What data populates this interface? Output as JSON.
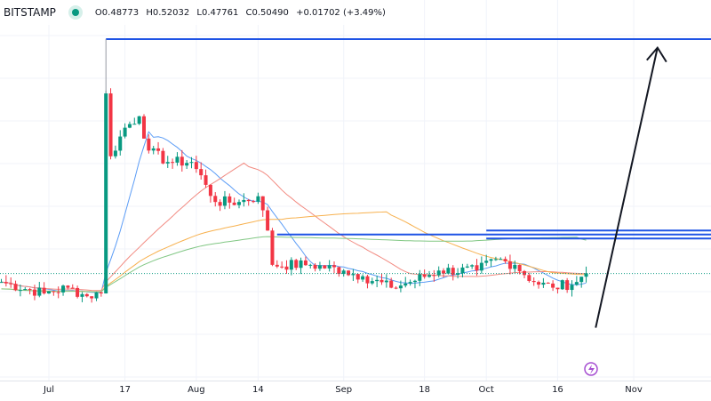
{
  "header": {
    "exchange": "BITSTAMP",
    "open": "O0.48773",
    "high": "H0.52032",
    "low": "L0.47761",
    "close": "C0.50490",
    "change": "+0.01702 (+3.49%)",
    "status_color": "#089981"
  },
  "axis": {
    "ticks": [
      {
        "label": "Jul",
        "day": 0
      },
      {
        "label": "17",
        "day": 16
      },
      {
        "label": "Aug",
        "day": 31
      },
      {
        "label": "14",
        "day": 44
      },
      {
        "label": "Sep",
        "day": 62
      },
      {
        "label": "18",
        "day": 79
      },
      {
        "label": "Oct",
        "day": 92
      },
      {
        "label": "16",
        "day": 107
      },
      {
        "label": "Nov",
        "day": 123
      }
    ]
  },
  "chart_data": {
    "type": "candlestick",
    "x_unit": "days since Jul 1",
    "close_keypoints": [
      [
        -10,
        0.49
      ],
      [
        -1,
        0.47
      ],
      [
        4,
        0.48
      ],
      [
        8,
        0.465
      ],
      [
        11,
        0.47
      ],
      [
        12,
        0.82
      ],
      [
        13,
        0.71
      ],
      [
        16,
        0.76
      ],
      [
        19,
        0.78
      ],
      [
        21,
        0.72
      ],
      [
        25,
        0.7
      ],
      [
        30,
        0.7
      ],
      [
        33,
        0.66
      ],
      [
        35,
        0.63
      ],
      [
        40,
        0.63
      ],
      [
        44,
        0.64
      ],
      [
        46,
        0.58
      ],
      [
        47,
        0.52
      ],
      [
        55,
        0.52
      ],
      [
        62,
        0.51
      ],
      [
        66,
        0.5
      ],
      [
        72,
        0.48
      ],
      [
        76,
        0.49
      ],
      [
        82,
        0.51
      ],
      [
        90,
        0.51
      ],
      [
        94,
        0.53
      ],
      [
        98,
        0.52
      ],
      [
        102,
        0.49
      ],
      [
        106,
        0.48
      ],
      [
        111,
        0.49
      ],
      [
        113,
        0.505
      ]
    ],
    "last_price": 0.5049,
    "levels": [
      {
        "price": 0.915,
        "from_day": 12,
        "color": "#1e53e5"
      },
      {
        "price": 0.573,
        "from_day": 48,
        "color": "#1e53e5"
      },
      {
        "price": 0.58,
        "from_day": 92,
        "color": "#1e53e5"
      },
      {
        "price": 0.566,
        "from_day": 92,
        "color": "#1e53e5"
      }
    ],
    "moving_averages": [
      {
        "period": 10,
        "color": "#5b9cf6"
      },
      {
        "period": 30,
        "color": "#f28b82"
      },
      {
        "period": 60,
        "color": "#f7b14f"
      },
      {
        "period": 100,
        "color": "#81c784"
      }
    ],
    "arrow": {
      "from": [
        115,
        0.41
      ],
      "to": [
        128,
        0.9
      ]
    },
    "up_color": "#089981",
    "down_color": "#f23645"
  }
}
